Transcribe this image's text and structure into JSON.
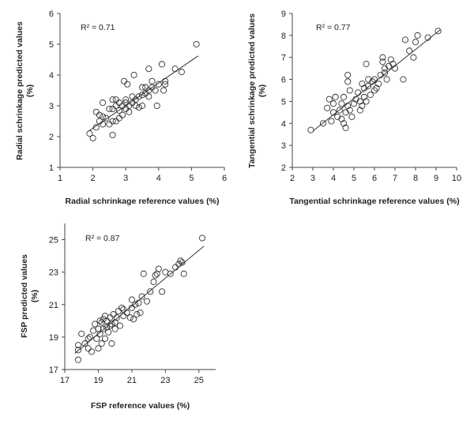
{
  "chart_data": [
    {
      "type": "scatter",
      "xlabel": "Radial schrinkage  reference values (%)",
      "ylabel_line1": "Radial schrinkage  predicted values",
      "ylabel_line2": "(%)",
      "annotation": "R² = 0.71",
      "xlim": [
        1,
        6
      ],
      "ylim": [
        1,
        6
      ],
      "xticks": [
        "1",
        "2",
        "3",
        "4",
        "5",
        "6"
      ],
      "yticks": [
        "1",
        "2",
        "3",
        "4",
        "5",
        "6"
      ],
      "trendline": [
        [
          1.9,
          2.2
        ],
        [
          5.2,
          4.62
        ]
      ],
      "points": [
        [
          1.9,
          2.1
        ],
        [
          2.0,
          1.95
        ],
        [
          2.1,
          2.3
        ],
        [
          2.1,
          2.8
        ],
        [
          2.2,
          2.5
        ],
        [
          2.2,
          2.7
        ],
        [
          2.3,
          2.4
        ],
        [
          2.3,
          2.65
        ],
        [
          2.3,
          3.1
        ],
        [
          2.4,
          2.6
        ],
        [
          2.5,
          2.9
        ],
        [
          2.5,
          2.4
        ],
        [
          2.6,
          2.05
        ],
        [
          2.6,
          2.5
        ],
        [
          2.6,
          2.9
        ],
        [
          2.6,
          3.2
        ],
        [
          2.7,
          2.5
        ],
        [
          2.7,
          3.0
        ],
        [
          2.7,
          3.2
        ],
        [
          2.8,
          2.6
        ],
        [
          2.8,
          2.85
        ],
        [
          2.8,
          3.1
        ],
        [
          2.9,
          2.7
        ],
        [
          2.9,
          3.0
        ],
        [
          2.95,
          3.8
        ],
        [
          3.0,
          2.9
        ],
        [
          3.0,
          3.1
        ],
        [
          3.0,
          3.2
        ],
        [
          3.05,
          3.7
        ],
        [
          3.1,
          2.8
        ],
        [
          3.1,
          3.0
        ],
        [
          3.2,
          3.1
        ],
        [
          3.2,
          3.3
        ],
        [
          3.25,
          4.0
        ],
        [
          3.3,
          3.0
        ],
        [
          3.3,
          3.2
        ],
        [
          3.4,
          2.95
        ],
        [
          3.4,
          3.3
        ],
        [
          3.5,
          3.0
        ],
        [
          3.5,
          3.35
        ],
        [
          3.5,
          3.6
        ],
        [
          3.6,
          3.4
        ],
        [
          3.6,
          3.6
        ],
        [
          3.7,
          3.5
        ],
        [
          3.7,
          4.2
        ],
        [
          3.7,
          3.3
        ],
        [
          3.8,
          3.6
        ],
        [
          3.8,
          3.8
        ],
        [
          3.9,
          3.5
        ],
        [
          3.95,
          3.0
        ],
        [
          4.0,
          3.7
        ],
        [
          4.1,
          4.35
        ],
        [
          4.15,
          3.5
        ],
        [
          4.2,
          3.7
        ],
        [
          4.2,
          3.8
        ],
        [
          4.5,
          4.2
        ],
        [
          4.7,
          4.1
        ],
        [
          5.15,
          5.0
        ]
      ]
    },
    {
      "type": "scatter",
      "xlabel": "Tangential schrinkage  reference values (%)",
      "ylabel_line1": "Tangential schrinkage  predicted values",
      "ylabel_line2": "(%)",
      "annotation": "R² = 0.77",
      "xlim": [
        2,
        10
      ],
      "ylim": [
        2,
        9
      ],
      "xticks": [
        "2",
        "3",
        "4",
        "5",
        "6",
        "7",
        "8",
        "9",
        "10"
      ],
      "yticks": [
        "2",
        "3",
        "4",
        "5",
        "6",
        "7",
        "8",
        "9"
      ],
      "trendline": [
        [
          3.0,
          3.65
        ],
        [
          9.2,
          8.25
        ]
      ],
      "points": [
        [
          2.9,
          3.7
        ],
        [
          3.5,
          4.0
        ],
        [
          3.7,
          4.7
        ],
        [
          3.8,
          5.1
        ],
        [
          3.9,
          4.1
        ],
        [
          4.0,
          4.5
        ],
        [
          4.0,
          4.9
        ],
        [
          4.1,
          5.2
        ],
        [
          4.2,
          4.3
        ],
        [
          4.3,
          4.6
        ],
        [
          4.4,
          4.2
        ],
        [
          4.4,
          4.9
        ],
        [
          4.5,
          4.0
        ],
        [
          4.5,
          5.2
        ],
        [
          4.6,
          4.5
        ],
        [
          4.6,
          3.8
        ],
        [
          4.7,
          4.8
        ],
        [
          4.7,
          5.9
        ],
        [
          4.7,
          6.2
        ],
        [
          4.8,
          4.6
        ],
        [
          4.8,
          5.5
        ],
        [
          4.9,
          4.3
        ],
        [
          5.0,
          4.9
        ],
        [
          5.1,
          5.1
        ],
        [
          5.2,
          5.4
        ],
        [
          5.3,
          4.6
        ],
        [
          5.3,
          5.0
        ],
        [
          5.4,
          5.8
        ],
        [
          5.4,
          4.8
        ],
        [
          5.5,
          5.2
        ],
        [
          5.5,
          5.6
        ],
        [
          5.6,
          6.7
        ],
        [
          5.6,
          5.0
        ],
        [
          5.7,
          5.7
        ],
        [
          5.7,
          6.0
        ],
        [
          5.8,
          5.3
        ],
        [
          5.9,
          5.9
        ],
        [
          6.0,
          5.5
        ],
        [
          6.0,
          6.0
        ],
        [
          6.1,
          5.6
        ],
        [
          6.2,
          5.8
        ],
        [
          6.3,
          6.2
        ],
        [
          6.4,
          6.8
        ],
        [
          6.4,
          7.0
        ],
        [
          6.5,
          6.5
        ],
        [
          6.5,
          6.3
        ],
        [
          6.6,
          6.0
        ],
        [
          6.7,
          6.6
        ],
        [
          6.8,
          6.9
        ],
        [
          6.9,
          6.7
        ],
        [
          7.0,
          6.5
        ],
        [
          7.4,
          6.0
        ],
        [
          7.5,
          7.8
        ],
        [
          7.7,
          7.3
        ],
        [
          7.9,
          7.0
        ],
        [
          8.0,
          7.7
        ],
        [
          8.1,
          8.0
        ],
        [
          8.6,
          7.9
        ],
        [
          9.1,
          8.2
        ]
      ]
    },
    {
      "type": "scatter",
      "xlabel": "FSP reference values (%)",
      "ylabel_line1": "FSP predicted values",
      "ylabel_line2": "(%)",
      "annotation": "R² = 0.87",
      "xlim": [
        17,
        26
      ],
      "ylim": [
        17,
        26
      ],
      "xticks": [
        "17",
        "19",
        "21",
        "23",
        "25"
      ],
      "yticks": [
        "17",
        "19",
        "21",
        "23",
        "25"
      ],
      "trendline": [
        [
          17.6,
          18.0
        ],
        [
          25.3,
          24.6
        ]
      ],
      "points": [
        [
          17.8,
          17.6
        ],
        [
          17.8,
          18.2
        ],
        [
          17.8,
          18.5
        ],
        [
          18.0,
          19.2
        ],
        [
          18.2,
          18.6
        ],
        [
          18.4,
          18.3
        ],
        [
          18.4,
          18.9
        ],
        [
          18.5,
          19.0
        ],
        [
          18.6,
          18.1
        ],
        [
          18.7,
          19.4
        ],
        [
          18.8,
          19.8
        ],
        [
          18.9,
          18.9
        ],
        [
          19.0,
          18.3
        ],
        [
          19.0,
          19.5
        ],
        [
          19.1,
          20.0
        ],
        [
          19.1,
          19.2
        ],
        [
          19.2,
          18.6
        ],
        [
          19.2,
          19.9
        ],
        [
          19.3,
          20.1
        ],
        [
          19.3,
          19.5
        ],
        [
          19.4,
          18.9
        ],
        [
          19.4,
          20.3
        ],
        [
          19.5,
          19.6
        ],
        [
          19.5,
          20.0
        ],
        [
          19.6,
          19.3
        ],
        [
          19.7,
          19.7
        ],
        [
          19.7,
          20.2
        ],
        [
          19.8,
          18.6
        ],
        [
          19.8,
          19.8
        ],
        [
          19.9,
          20.4
        ],
        [
          20.0,
          19.5
        ],
        [
          20.0,
          19.9
        ],
        [
          20.1,
          20.2
        ],
        [
          20.2,
          20.6
        ],
        [
          20.3,
          19.7
        ],
        [
          20.4,
          20.8
        ],
        [
          20.5,
          20.3
        ],
        [
          20.5,
          20.7
        ],
        [
          20.7,
          20.5
        ],
        [
          20.9,
          20.2
        ],
        [
          21.0,
          20.8
        ],
        [
          21.0,
          21.3
        ],
        [
          21.1,
          20.1
        ],
        [
          21.2,
          21.0
        ],
        [
          21.3,
          20.4
        ],
        [
          21.4,
          21.1
        ],
        [
          21.5,
          20.5
        ],
        [
          21.6,
          21.5
        ],
        [
          21.7,
          22.9
        ],
        [
          21.9,
          21.2
        ],
        [
          22.1,
          21.8
        ],
        [
          22.3,
          22.4
        ],
        [
          22.4,
          22.8
        ],
        [
          22.5,
          22.9
        ],
        [
          22.6,
          23.2
        ],
        [
          22.8,
          21.8
        ],
        [
          23.0,
          23.0
        ],
        [
          23.3,
          22.9
        ],
        [
          23.6,
          23.3
        ],
        [
          23.8,
          23.5
        ],
        [
          23.9,
          23.7
        ],
        [
          24.0,
          23.6
        ],
        [
          24.1,
          22.9
        ],
        [
          25.2,
          25.1
        ]
      ]
    }
  ]
}
